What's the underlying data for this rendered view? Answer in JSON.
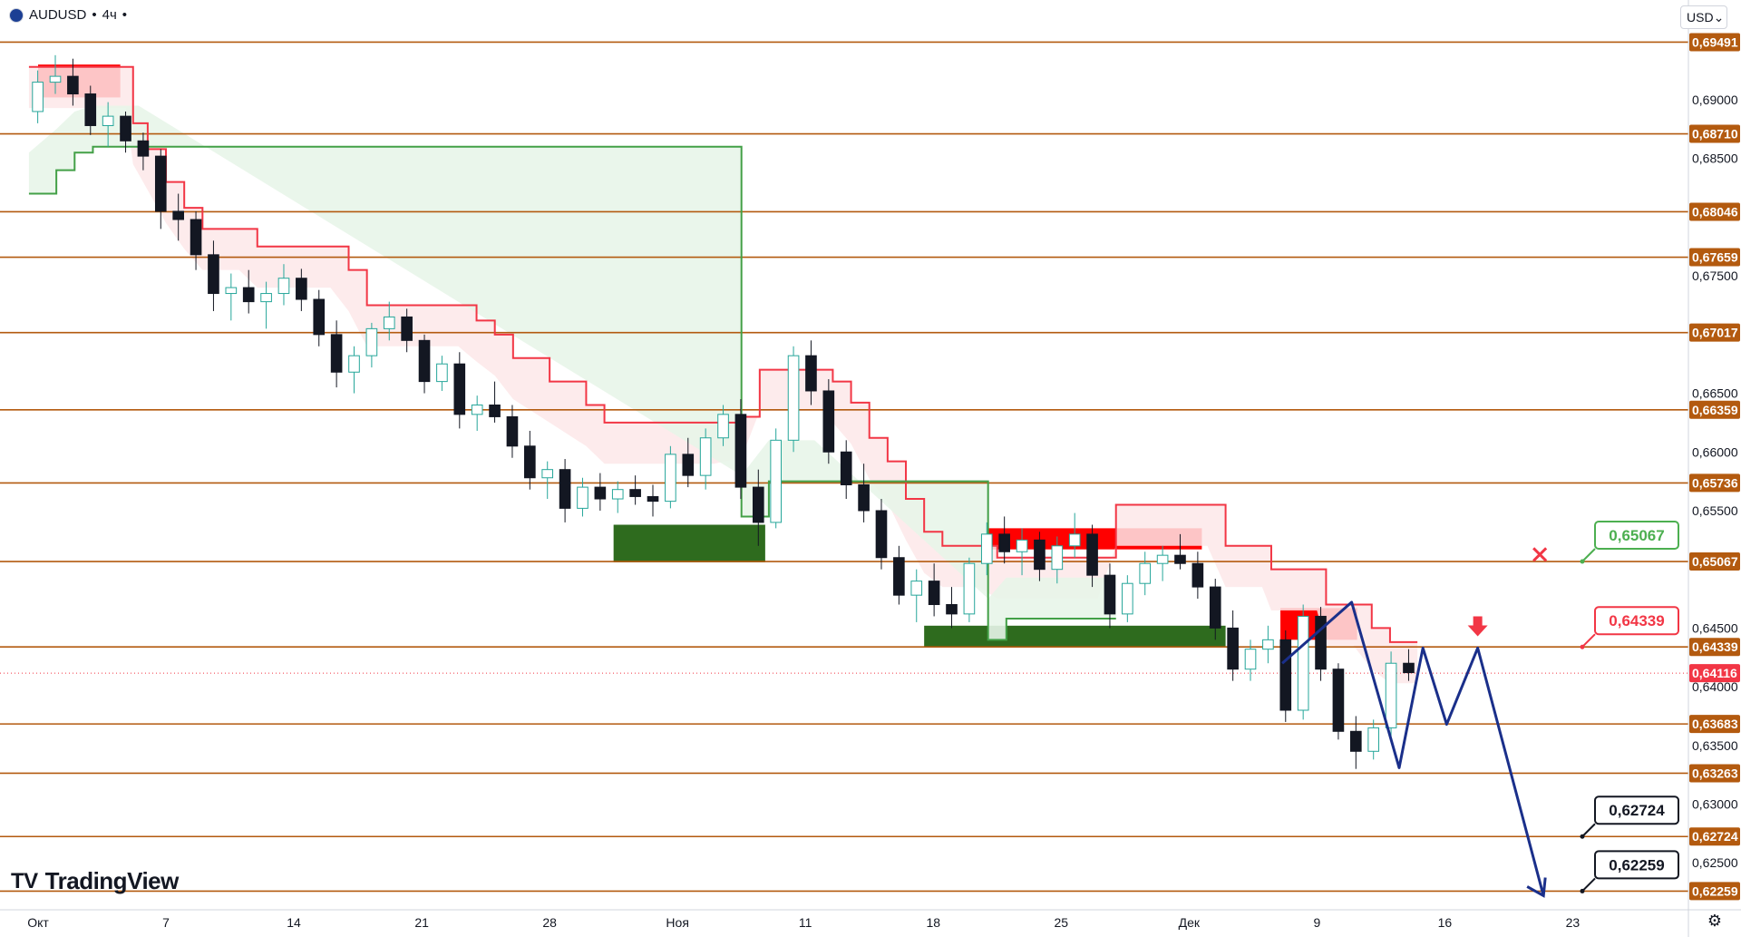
{
  "header": {
    "symbol": "AUDUSD",
    "separator": "•",
    "interval": "4ч",
    "separator2": "•"
  },
  "currency": {
    "label": "USD",
    "chevron": "chevron-down-icon"
  },
  "logo": {
    "text": "TradingView",
    "mark": "TV"
  },
  "colors": {
    "level_line": "#b35a0f",
    "level_badge": "#b35a0f",
    "resistance": "#f23645",
    "resistance_fill": "#fde7e9",
    "support": "#43a047",
    "support_fill": "#e8f5e9",
    "red_zone": "#ff0000",
    "green_zone": "#2e6b1e",
    "forecast_line": "#1a2f8a",
    "candle_up": "#26a69a",
    "candle_down": "#131722",
    "current_price": "#f23645"
  },
  "chart_data": {
    "type": "candlestick",
    "symbol": "AUDUSD",
    "interval": "4ч",
    "ylim": [
      0.621,
      0.6985
    ],
    "y_ticks": [
      "0,69000",
      "0,68500",
      "0,67500",
      "0,66500",
      "0,66000",
      "0,65500",
      "0,64500",
      "0,64000",
      "0,63500",
      "0,63000",
      "0,62500"
    ],
    "x_ticks": [
      "Окт",
      "7",
      "14",
      "21",
      "28",
      "Ноя",
      "11",
      "18",
      "25",
      "Дек",
      "9",
      "16",
      "23"
    ],
    "x_range_days": [
      0,
      88
    ],
    "levels": [
      {
        "label": "0,69491",
        "value": 0.69491
      },
      {
        "label": "0,68710",
        "value": 0.6871
      },
      {
        "label": "0,68046",
        "value": 0.68046
      },
      {
        "label": "0,67659",
        "value": 0.67659
      },
      {
        "label": "0,67017",
        "value": 0.67017
      },
      {
        "label": "0,66359",
        "value": 0.66359
      },
      {
        "label": "0,65736",
        "value": 0.65736
      },
      {
        "label": "0,65067",
        "value": 0.65067
      },
      {
        "label": "0,64339",
        "value": 0.64339
      },
      {
        "label": "0,63683",
        "value": 0.63683
      },
      {
        "label": "0,63263",
        "value": 0.63263
      },
      {
        "label": "0,62724",
        "value": 0.62724
      },
      {
        "label": "0,62259",
        "value": 0.62259
      }
    ],
    "current_price": {
      "label": "0,64116",
      "value": 0.64116
    },
    "callouts": [
      {
        "label": "0,65067",
        "value": 0.65067,
        "style": "green"
      },
      {
        "label": "0,64339",
        "value": 0.64339,
        "style": "red"
      },
      {
        "label": "0,62724",
        "value": 0.62724,
        "style": "black"
      },
      {
        "label": "0,62259",
        "value": 0.62259,
        "style": "black"
      }
    ],
    "zones": [
      {
        "color": "red",
        "x": [
          0,
          4.5
        ],
        "y": [
          0.6902,
          0.693
        ]
      },
      {
        "color": "green",
        "x": [
          31.5,
          39.8
        ],
        "y": [
          0.6506,
          0.6538
        ]
      },
      {
        "color": "red",
        "x": [
          52,
          63.7
        ],
        "y": [
          0.6517,
          0.6535
        ]
      },
      {
        "color": "green",
        "x": [
          48.5,
          65
        ],
        "y": [
          0.6434,
          0.6452
        ]
      },
      {
        "color": "red",
        "x": [
          68,
          72.2
        ],
        "y": [
          0.644,
          0.6467
        ]
      }
    ],
    "forecast_path": [
      [
        68.1,
        0.642
      ],
      [
        71.9,
        0.6472
      ],
      [
        74.5,
        0.6331
      ],
      [
        75.8,
        0.6433
      ],
      [
        77.1,
        0.6368
      ],
      [
        78.8,
        0.6433
      ],
      [
        82.4,
        0.6222
      ]
    ],
    "down_arrow": {
      "x": 78.8,
      "y": 0.6443
    },
    "cross_marker": {
      "x": 82.2,
      "y": 0.6508
    },
    "ohlc": [
      [
        0.689,
        0.6925,
        0.688,
        0.6915
      ],
      [
        0.6915,
        0.6938,
        0.6905,
        0.692
      ],
      [
        0.692,
        0.6935,
        0.6895,
        0.6905
      ],
      [
        0.6905,
        0.6912,
        0.687,
        0.6878
      ],
      [
        0.6878,
        0.6898,
        0.686,
        0.6886
      ],
      [
        0.6886,
        0.689,
        0.6855,
        0.6865
      ],
      [
        0.6865,
        0.6872,
        0.684,
        0.6852
      ],
      [
        0.6852,
        0.6858,
        0.679,
        0.6805
      ],
      [
        0.6805,
        0.682,
        0.678,
        0.6798
      ],
      [
        0.6798,
        0.6805,
        0.6755,
        0.6768
      ],
      [
        0.6768,
        0.678,
        0.672,
        0.6735
      ],
      [
        0.6735,
        0.6752,
        0.6712,
        0.674
      ],
      [
        0.674,
        0.6755,
        0.6718,
        0.6728
      ],
      [
        0.6728,
        0.6745,
        0.6705,
        0.6735
      ],
      [
        0.6735,
        0.676,
        0.6725,
        0.6748
      ],
      [
        0.6748,
        0.6756,
        0.672,
        0.673
      ],
      [
        0.673,
        0.6738,
        0.669,
        0.67
      ],
      [
        0.67,
        0.6712,
        0.6655,
        0.6668
      ],
      [
        0.6668,
        0.669,
        0.665,
        0.6682
      ],
      [
        0.6682,
        0.671,
        0.6672,
        0.6705
      ],
      [
        0.6705,
        0.6728,
        0.6695,
        0.6715
      ],
      [
        0.6715,
        0.6722,
        0.6685,
        0.6695
      ],
      [
        0.6695,
        0.67,
        0.665,
        0.666
      ],
      [
        0.666,
        0.6682,
        0.6652,
        0.6675
      ],
      [
        0.6675,
        0.6685,
        0.662,
        0.6632
      ],
      [
        0.6632,
        0.6648,
        0.6618,
        0.664
      ],
      [
        0.664,
        0.666,
        0.6625,
        0.663
      ],
      [
        0.663,
        0.664,
        0.6595,
        0.6605
      ],
      [
        0.6605,
        0.6618,
        0.6568,
        0.6578
      ],
      [
        0.6578,
        0.6592,
        0.656,
        0.6585
      ],
      [
        0.6585,
        0.6594,
        0.654,
        0.6552
      ],
      [
        0.6552,
        0.6578,
        0.6545,
        0.657
      ],
      [
        0.657,
        0.6582,
        0.655,
        0.656
      ],
      [
        0.656,
        0.6575,
        0.6548,
        0.6568
      ],
      [
        0.6568,
        0.658,
        0.6555,
        0.6562
      ],
      [
        0.6562,
        0.6572,
        0.6545,
        0.6558
      ],
      [
        0.6558,
        0.6605,
        0.6552,
        0.6598
      ],
      [
        0.6598,
        0.6612,
        0.657,
        0.658
      ],
      [
        0.658,
        0.662,
        0.6568,
        0.6612
      ],
      [
        0.6612,
        0.664,
        0.6605,
        0.6632
      ],
      [
        0.6632,
        0.6645,
        0.656,
        0.657
      ],
      [
        0.657,
        0.6585,
        0.652,
        0.654
      ],
      [
        0.654,
        0.662,
        0.6535,
        0.661
      ],
      [
        0.661,
        0.669,
        0.66,
        0.6682
      ],
      [
        0.6682,
        0.6695,
        0.664,
        0.6652
      ],
      [
        0.6652,
        0.6662,
        0.659,
        0.66
      ],
      [
        0.66,
        0.661,
        0.656,
        0.6572
      ],
      [
        0.6572,
        0.659,
        0.654,
        0.655
      ],
      [
        0.655,
        0.656,
        0.65,
        0.651
      ],
      [
        0.651,
        0.652,
        0.647,
        0.6478
      ],
      [
        0.6478,
        0.65,
        0.6455,
        0.649
      ],
      [
        0.649,
        0.6505,
        0.646,
        0.647
      ],
      [
        0.647,
        0.6485,
        0.645,
        0.6462
      ],
      [
        0.6462,
        0.651,
        0.6455,
        0.6505
      ],
      [
        0.6505,
        0.654,
        0.6495,
        0.653
      ],
      [
        0.653,
        0.6545,
        0.6505,
        0.6515
      ],
      [
        0.6515,
        0.6535,
        0.6495,
        0.6525
      ],
      [
        0.6525,
        0.6532,
        0.649,
        0.65
      ],
      [
        0.65,
        0.6528,
        0.6488,
        0.652
      ],
      [
        0.652,
        0.6548,
        0.651,
        0.653
      ],
      [
        0.653,
        0.6538,
        0.6485,
        0.6495
      ],
      [
        0.6495,
        0.6505,
        0.645,
        0.6462
      ],
      [
        0.6462,
        0.6495,
        0.6455,
        0.6488
      ],
      [
        0.6488,
        0.6515,
        0.6478,
        0.6505
      ],
      [
        0.6505,
        0.652,
        0.649,
        0.6512
      ],
      [
        0.6512,
        0.653,
        0.65,
        0.6505
      ],
      [
        0.6505,
        0.6515,
        0.6475,
        0.6485
      ],
      [
        0.6485,
        0.6492,
        0.644,
        0.645
      ],
      [
        0.645,
        0.6465,
        0.6405,
        0.6415
      ],
      [
        0.6415,
        0.644,
        0.6405,
        0.6432
      ],
      [
        0.6432,
        0.6452,
        0.642,
        0.644
      ],
      [
        0.644,
        0.6448,
        0.637,
        0.638
      ],
      [
        0.638,
        0.647,
        0.6372,
        0.646
      ],
      [
        0.646,
        0.6468,
        0.6405,
        0.6415
      ],
      [
        0.6415,
        0.642,
        0.6355,
        0.6362
      ],
      [
        0.6362,
        0.6375,
        0.633,
        0.6345
      ],
      [
        0.6345,
        0.6372,
        0.6338,
        0.6365
      ],
      [
        0.6365,
        0.643,
        0.6358,
        0.642
      ],
      [
        0.642,
        0.6432,
        0.6405,
        0.6412
      ]
    ],
    "resistance_line": [
      [
        -0.5,
        0.6928
      ],
      [
        4.8,
        0.6928
      ],
      [
        5.2,
        0.688
      ],
      [
        6,
        0.6858
      ],
      [
        7,
        0.683
      ],
      [
        8,
        0.6808
      ],
      [
        9,
        0.679
      ],
      [
        11,
        0.679
      ],
      [
        12,
        0.6775
      ],
      [
        16,
        0.6775
      ],
      [
        17,
        0.6755
      ],
      [
        18,
        0.6725
      ],
      [
        23,
        0.6725
      ],
      [
        24,
        0.6712
      ],
      [
        25,
        0.67
      ],
      [
        26,
        0.668
      ],
      [
        28,
        0.666
      ],
      [
        30,
        0.664
      ],
      [
        31,
        0.6625
      ],
      [
        37,
        0.6625
      ],
      [
        38.5,
        0.663
      ],
      [
        39.5,
        0.667
      ],
      [
        41,
        0.667
      ],
      [
        43,
        0.667
      ],
      [
        43.5,
        0.666
      ],
      [
        44.5,
        0.6642
      ],
      [
        45.5,
        0.6612
      ],
      [
        46.5,
        0.6592
      ],
      [
        47.5,
        0.656
      ],
      [
        48.5,
        0.6532
      ],
      [
        49.5,
        0.652
      ],
      [
        51.5,
        0.652
      ],
      [
        52.5,
        0.651
      ],
      [
        58,
        0.651
      ],
      [
        59,
        0.6555
      ],
      [
        64,
        0.6555
      ],
      [
        65,
        0.652
      ],
      [
        67,
        0.652
      ],
      [
        67.5,
        0.65
      ],
      [
        70,
        0.65
      ],
      [
        70.5,
        0.647
      ],
      [
        72,
        0.647
      ],
      [
        73,
        0.645
      ],
      [
        74,
        0.6438
      ],
      [
        75.5,
        0.6438
      ]
    ],
    "support_line": [
      [
        -0.5,
        0.682
      ],
      [
        1,
        0.684
      ],
      [
        2,
        0.6855
      ],
      [
        3,
        0.686
      ],
      [
        5.5,
        0.686
      ],
      [
        38.5,
        0.6545
      ],
      [
        40,
        0.6575
      ],
      [
        41,
        0.6575
      ],
      [
        42.5,
        0.6575
      ],
      [
        52,
        0.644
      ],
      [
        53,
        0.6458
      ],
      [
        59,
        0.6458
      ]
    ],
    "forecast_note": ""
  }
}
